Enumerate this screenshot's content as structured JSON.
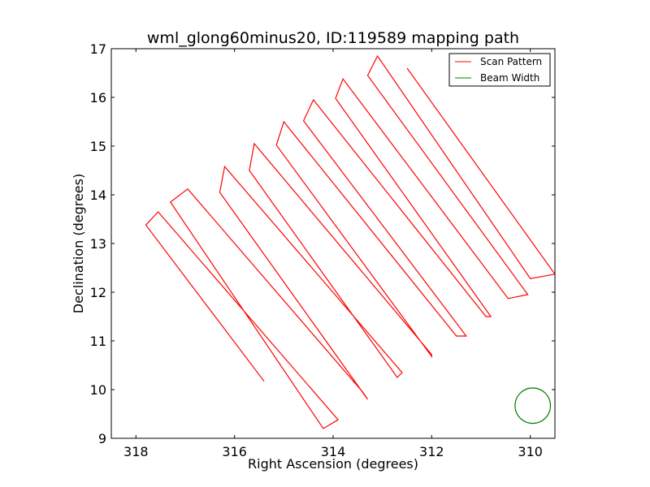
{
  "chart_data": {
    "type": "line",
    "title": "wml_glong60minus20, ID:119589 mapping path",
    "xlabel": "Right Ascension (degrees)",
    "ylabel": "Declination (degrees)",
    "xlim": [
      318.5,
      309.5
    ],
    "ylim": [
      9,
      17
    ],
    "x_reversed": true,
    "x_ticks": [
      318,
      316,
      314,
      312,
      310
    ],
    "y_ticks": [
      9,
      10,
      11,
      12,
      13,
      14,
      15,
      16,
      17
    ],
    "grid": false,
    "legend_position": "top-right",
    "series": [
      {
        "name": "Scan Pattern",
        "color": "#ff0000",
        "style": "line",
        "points": [
          [
            315.4,
            10.17
          ],
          [
            317.8,
            13.38
          ],
          [
            317.55,
            13.65
          ],
          [
            313.9,
            9.38
          ],
          [
            314.2,
            9.2
          ],
          [
            317.3,
            13.85
          ],
          [
            316.95,
            14.12
          ],
          [
            313.4,
            9.95
          ],
          [
            313.3,
            9.8
          ],
          [
            316.3,
            14.05
          ],
          [
            316.2,
            14.58
          ],
          [
            312.6,
            10.35
          ],
          [
            312.7,
            10.25
          ],
          [
            315.7,
            14.5
          ],
          [
            315.6,
            15.05
          ],
          [
            312.0,
            10.72
          ],
          [
            312.0,
            10.68
          ],
          [
            315.15,
            15.02
          ],
          [
            315.0,
            15.5
          ],
          [
            311.5,
            11.1
          ],
          [
            311.3,
            11.1
          ],
          [
            314.6,
            15.52
          ],
          [
            314.4,
            15.95
          ],
          [
            310.9,
            11.5
          ],
          [
            310.8,
            11.5
          ],
          [
            313.95,
            15.98
          ],
          [
            313.8,
            16.38
          ],
          [
            310.45,
            11.87
          ],
          [
            310.05,
            11.95
          ],
          [
            313.3,
            16.45
          ],
          [
            313.1,
            16.85
          ],
          [
            310.0,
            12.28
          ],
          [
            309.5,
            12.37
          ],
          [
            312.5,
            16.6
          ]
        ]
      },
      {
        "name": "Beam Width",
        "color": "#008000",
        "style": "circle",
        "center": [
          309.95,
          9.67
        ],
        "radius_deg": 0.36
      }
    ]
  }
}
